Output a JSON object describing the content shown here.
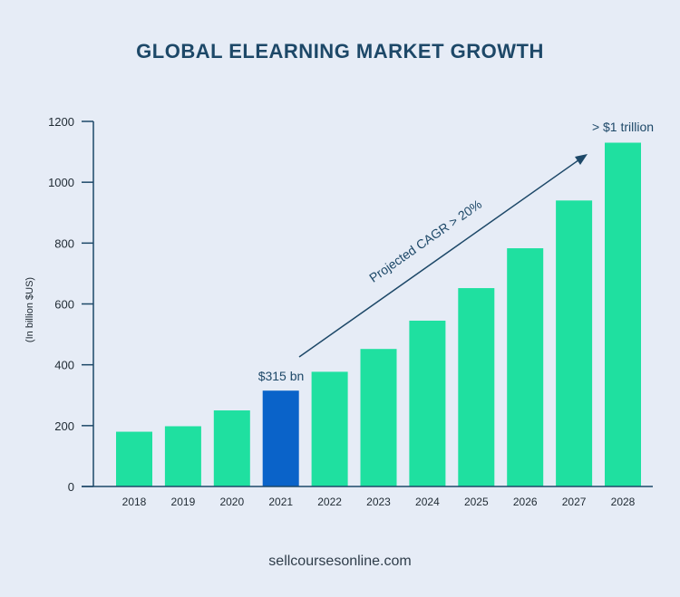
{
  "colors": {
    "background": "#e6ecf6",
    "bar": "#1fe0a0",
    "highlight_bar": "#0a63c9",
    "title": "#1d4868",
    "axis": "#1d4868",
    "annotation": "#1d4868"
  },
  "chart_data": {
    "type": "bar",
    "title": "GLOBAL ELEARNING MARKET GROWTH",
    "xlabel": "",
    "ylabel": "(In billion $US)",
    "ylim": [
      0,
      1200
    ],
    "yticks": [
      0,
      200,
      400,
      600,
      800,
      1000,
      1200
    ],
    "categories": [
      "2018",
      "2019",
      "2020",
      "2021",
      "2022",
      "2023",
      "2024",
      "2025",
      "2026",
      "2027",
      "2028"
    ],
    "values": [
      180,
      198,
      250,
      315,
      377,
      452,
      545,
      652,
      783,
      940,
      1130
    ],
    "highlight_category": "2021",
    "grid": false,
    "annotations": {
      "highlight_label": "$315 bn",
      "trend_label": "Projected CAGR > 20%",
      "end_label": "> $1 trillion"
    }
  },
  "footer": "sellcoursesonline.com"
}
